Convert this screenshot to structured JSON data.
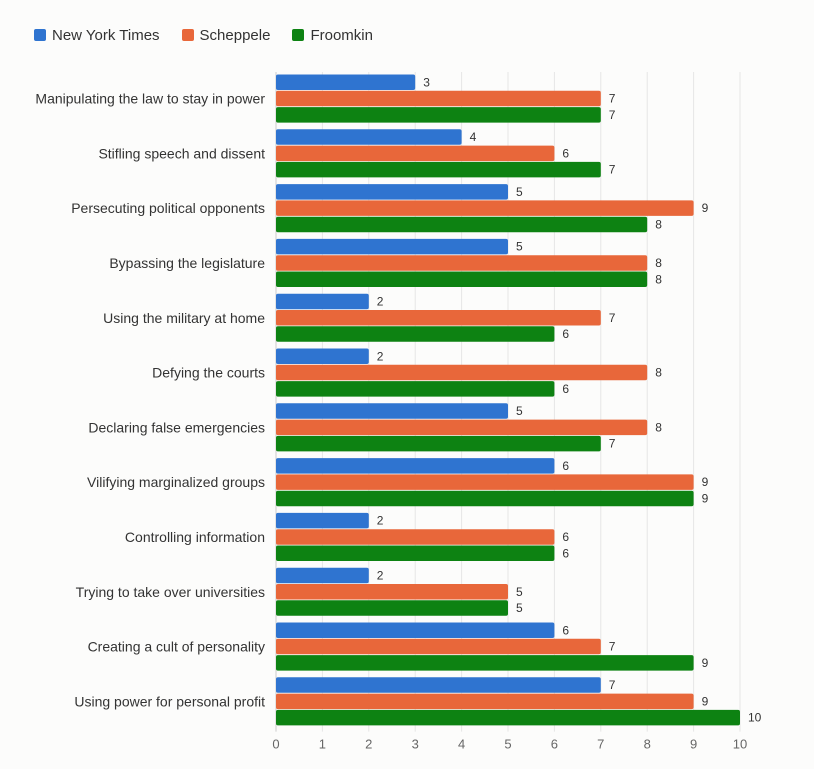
{
  "colors": {
    "series": [
      "#2f74d0",
      "#e8673a",
      "#0d8212"
    ],
    "grid": "#e6e6e6",
    "axis": "#cccccc",
    "background": "#fcfcfb"
  },
  "chart_data": {
    "type": "bar",
    "orientation": "horizontal",
    "categories": [
      "Manipulating the law to stay in power",
      "Stifling speech and dissent",
      "Persecuting political opponents",
      "Bypassing the legislature",
      "Using the military at home",
      "Defying the courts",
      "Declaring false emergencies",
      "Vilifying marginalized groups",
      "Controlling information",
      "Trying to take over universities",
      "Creating a cult of personality",
      "Using power for personal profit"
    ],
    "series": [
      {
        "name": "New York Times",
        "values": [
          3,
          4,
          5,
          5,
          2,
          2,
          5,
          6,
          2,
          2,
          6,
          7
        ]
      },
      {
        "name": "Scheppele",
        "values": [
          7,
          6,
          9,
          8,
          7,
          8,
          8,
          9,
          6,
          5,
          7,
          9
        ]
      },
      {
        "name": "Froomkin",
        "values": [
          7,
          7,
          8,
          8,
          6,
          6,
          7,
          9,
          6,
          5,
          9,
          10
        ]
      }
    ],
    "xlim": [
      0,
      10
    ],
    "xticks": [
      "0",
      "1",
      "2",
      "3",
      "4",
      "5",
      "6",
      "7",
      "8",
      "9",
      "10"
    ],
    "grid": true,
    "legend_position": "top-left",
    "data_labels": true
  }
}
